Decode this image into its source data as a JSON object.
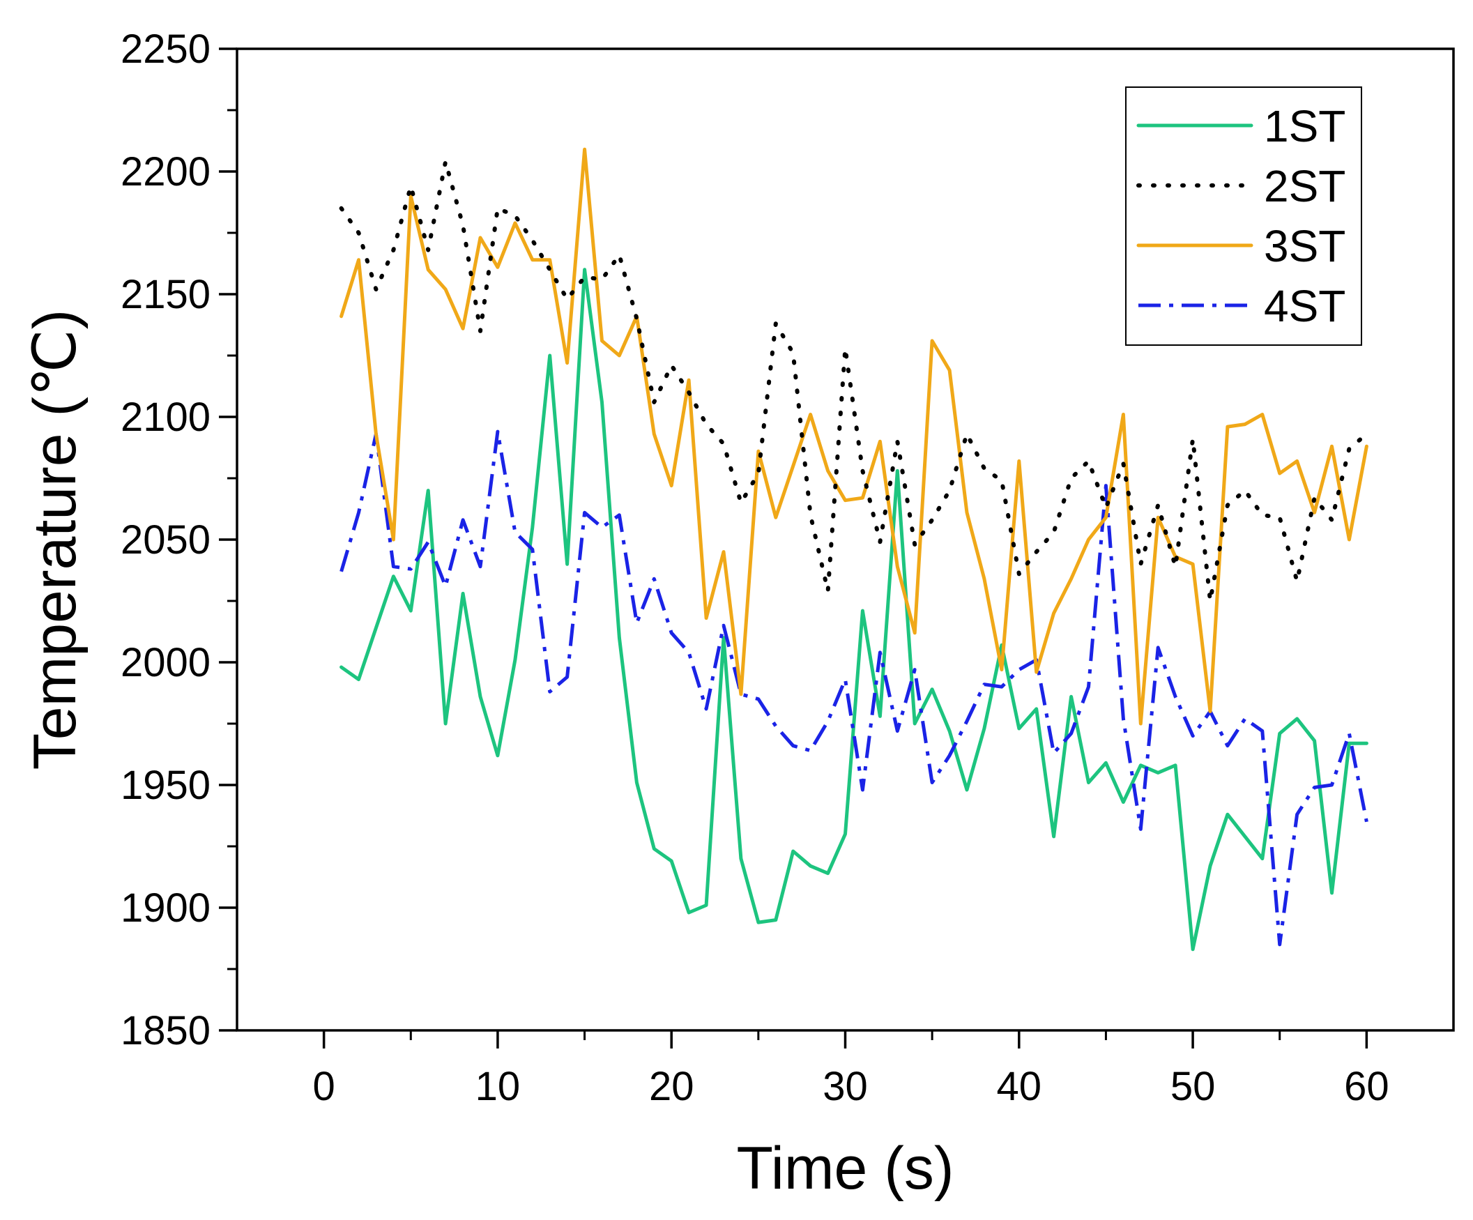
{
  "chart_data": {
    "type": "line",
    "title": "",
    "xlabel": "Time (s)",
    "ylabel": "Temperature (℃)",
    "xlim": [
      -5,
      65
    ],
    "ylim": [
      1850,
      2250
    ],
    "xticks": [
      0,
      10,
      20,
      30,
      40,
      50,
      60
    ],
    "yticks": [
      1850,
      1900,
      1950,
      2000,
      2050,
      2100,
      2150,
      2200,
      2250
    ],
    "xtick_labels": [
      "0",
      "10",
      "20",
      "30",
      "40",
      "50",
      "60"
    ],
    "ytick_labels": [
      "1850",
      "1900",
      "1950",
      "2000",
      "2050",
      "2100",
      "2150",
      "2200",
      "2250"
    ],
    "grid": false,
    "legend_position": "top-right",
    "x": [
      1,
      2,
      3,
      4,
      5,
      6,
      7,
      8,
      9,
      10,
      11,
      12,
      13,
      14,
      15,
      16,
      17,
      18,
      19,
      20,
      21,
      22,
      23,
      24,
      25,
      26,
      27,
      28,
      29,
      30,
      31,
      32,
      33,
      34,
      35,
      36,
      37,
      38,
      39,
      40,
      41,
      42,
      43,
      44,
      45,
      46,
      47,
      48,
      49,
      50,
      51,
      52,
      53,
      54,
      55,
      56,
      57,
      58,
      59,
      60
    ],
    "series": [
      {
        "name": "1ST",
        "color": "#1dc47f",
        "style": "solid",
        "values": [
          1998,
          1993,
          2014,
          2035,
          2021,
          2070,
          1975,
          2028,
          1986,
          1962,
          2001,
          2055,
          2125,
          2040,
          2160,
          2106,
          2010,
          1951,
          1924,
          1919,
          1898,
          1901,
          2010,
          1920,
          1894,
          1895,
          1923,
          1917,
          1914,
          1930,
          2021,
          1978,
          2078,
          1975,
          1989,
          1972,
          1948,
          1973,
          2007,
          1973,
          1981,
          1929,
          1986,
          1951,
          1959,
          1943,
          1958,
          1955,
          1958,
          1883,
          1917,
          1938,
          1929,
          1920,
          1971,
          1977,
          1968,
          1906,
          1967,
          1967
        ]
      },
      {
        "name": "2ST",
        "color": "#000000",
        "style": "dotted",
        "values": [
          2185,
          2175,
          2152,
          2168,
          2194,
          2168,
          2204,
          2178,
          2135,
          2185,
          2182,
          2172,
          2160,
          2148,
          2157,
          2156,
          2166,
          2140,
          2106,
          2121,
          2110,
          2097,
          2089,
          2065,
          2077,
          2138,
          2126,
          2060,
          2029,
          2128,
          2078,
          2049,
          2090,
          2048,
          2058,
          2070,
          2093,
          2079,
          2074,
          2036,
          2045,
          2053,
          2075,
          2082,
          2063,
          2081,
          2040,
          2064,
          2039,
          2091,
          2025,
          2064,
          2070,
          2060,
          2059,
          2033,
          2067,
          2058,
          2087,
          2093
        ]
      },
      {
        "name": "3ST",
        "color": "#f0a818",
        "style": "solid",
        "values": [
          2141,
          2164,
          2093,
          2050,
          2190,
          2160,
          2152,
          2136,
          2173,
          2161,
          2179,
          2164,
          2164,
          2122,
          2209,
          2131,
          2125,
          2141,
          2093,
          2072,
          2115,
          2018,
          2045,
          1987,
          2086,
          2059,
          2080,
          2101,
          2078,
          2066,
          2067,
          2090,
          2039,
          2012,
          2131,
          2119,
          2061,
          2034,
          1997,
          2082,
          1996,
          2020,
          2034,
          2050,
          2059,
          2101,
          1975,
          2059,
          2043,
          2040,
          1980,
          2096,
          2097,
          2101,
          2077,
          2082,
          2061,
          2088,
          2050,
          2088
        ]
      },
      {
        "name": "4ST",
        "color": "#1a23e6",
        "style": "dashdot",
        "values": [
          2037,
          2061,
          2093,
          2039,
          2038,
          2049,
          2031,
          2058,
          2039,
          2094,
          2053,
          2046,
          1988,
          1994,
          2061,
          2055,
          2060,
          2016,
          2034,
          2012,
          2004,
          1981,
          2015,
          1987,
          1985,
          1974,
          1966,
          1964,
          1976,
          1993,
          1948,
          2004,
          1972,
          1997,
          1951,
          1962,
          1976,
          1991,
          1990,
          1997,
          2001,
          1963,
          1971,
          1990,
          2072,
          1977,
          1932,
          2006,
          1986,
          1970,
          1980,
          1966,
          1977,
          1972,
          1885,
          1938,
          1949,
          1950,
          1971,
          1935
        ]
      }
    ]
  }
}
